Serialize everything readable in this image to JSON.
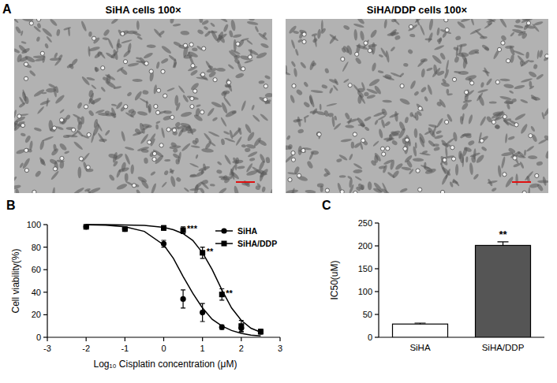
{
  "panel_a": {
    "panel_label": "A",
    "images": [
      {
        "title": "SiHA cells 100×"
      },
      {
        "title": "SiHA/DDP cells 100×"
      }
    ]
  },
  "chart_data": [
    {
      "panel_label": "B",
      "type": "scatter",
      "x_label": "Log₁₀ Cisplatin concentration (μM)",
      "y_label": "Cell viability(%)",
      "xlim": [
        -3,
        3
      ],
      "xticks": [
        -3,
        -2,
        -1,
        0,
        1,
        2,
        3
      ],
      "ylim": [
        0,
        100
      ],
      "yticks": [
        0,
        20,
        40,
        60,
        80,
        100
      ],
      "grid": false,
      "legend": "top-right",
      "series": [
        {
          "name": "SiHA",
          "color": "#000000",
          "marker": "circle",
          "line_style": "solid",
          "x": [
            -2,
            -1,
            0,
            0.5,
            1,
            1.5,
            2,
            2.5
          ],
          "values": [
            98,
            96,
            83,
            34,
            22,
            9,
            8,
            5
          ],
          "errors": [
            1,
            1,
            3,
            8,
            8,
            2,
            3,
            2
          ],
          "curve": {
            "x": [
              -2,
              -1.5,
              -1,
              -0.5,
              0,
              0.25,
              0.5,
              0.75,
              1,
              1.25,
              1.5,
              1.75,
              2,
              2.25,
              2.5
            ],
            "values": [
              99.8,
              99.5,
              98,
              94,
              82,
              70,
              54,
              39,
              26,
              16,
              10,
              6,
              3.5,
              2,
              1.2
            ]
          }
        },
        {
          "name": "SiHA/DDP",
          "color": "#000000",
          "marker": "square",
          "line_style": "solid",
          "x": [
            -2,
            -1,
            0,
            0.5,
            1,
            1.5,
            2,
            2.5
          ],
          "values": [
            98,
            96,
            97,
            95,
            75,
            38,
            10,
            5
          ],
          "errors": [
            1,
            1,
            2,
            3,
            5,
            5,
            5,
            2
          ],
          "curve": {
            "x": [
              -2,
              -1.5,
              -1,
              -0.5,
              0,
              0.25,
              0.5,
              0.75,
              1,
              1.25,
              1.5,
              1.75,
              2,
              2.25,
              2.5
            ],
            "values": [
              100,
              100,
              99.7,
              99.3,
              97.5,
              95.5,
              92,
              86,
              75,
              60,
              42,
              26,
              15,
              8,
              4.5
            ]
          }
        }
      ],
      "annotations": [
        {
          "x": 0.5,
          "text": "***"
        },
        {
          "x": 1,
          "text": "**"
        },
        {
          "x": 1.5,
          "text": "**"
        }
      ]
    },
    {
      "panel_label": "C",
      "type": "bar",
      "categories": [
        "SiHA",
        "SiHA/DDP"
      ],
      "values": [
        29,
        201
      ],
      "errors": [
        2,
        8
      ],
      "colors": [
        "#ffffff",
        "#555555"
      ],
      "y_label": "IC50(uM)",
      "ylim": [
        0,
        250
      ],
      "yticks": [
        0,
        50,
        100,
        150,
        200,
        250
      ],
      "grid": false,
      "annotations": [
        {
          "x": "SiHA/DDP",
          "text": "**"
        }
      ]
    }
  ]
}
